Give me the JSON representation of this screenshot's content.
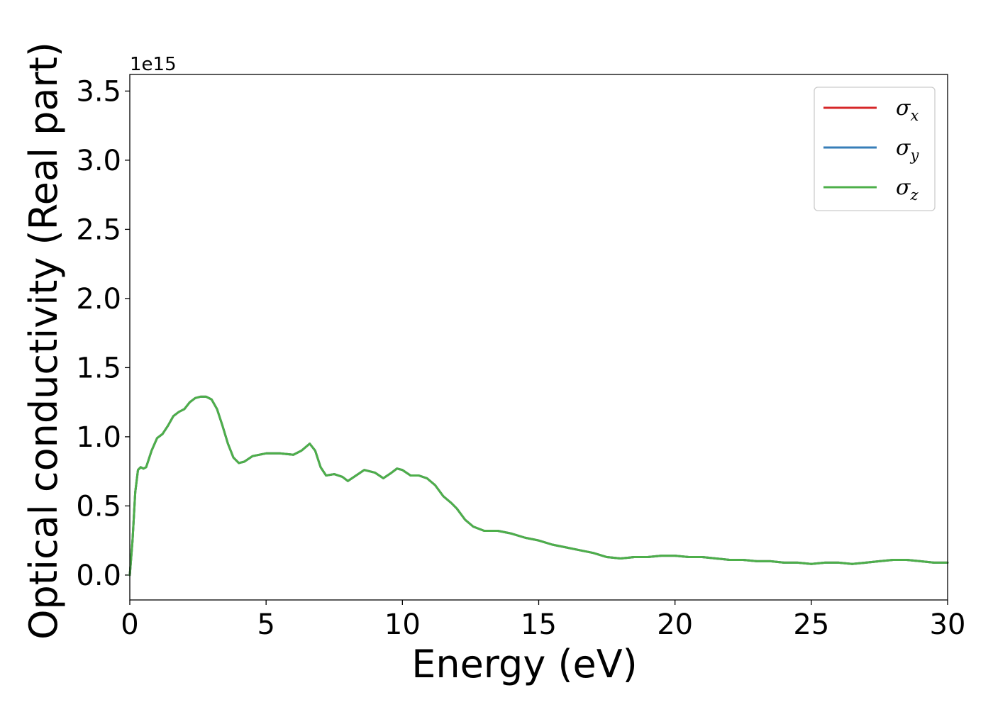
{
  "chart_data": {
    "type": "line",
    "title": "",
    "xlabel": "Energy (eV)",
    "ylabel": "Optical conductivity (Real part)",
    "y_offset_label": "1e15",
    "y_scale": 1000000000000000.0,
    "xlim": [
      0,
      30
    ],
    "ylim": [
      -0.18,
      3.62
    ],
    "grid": false,
    "legend_position": "top-right",
    "x_ticks": [
      0,
      5,
      10,
      15,
      20,
      25,
      30
    ],
    "x_tick_labels": [
      "0",
      "5",
      "10",
      "15",
      "20",
      "25",
      "30"
    ],
    "y_ticks": [
      0.0,
      0.5,
      1.0,
      1.5,
      2.0,
      2.5,
      3.0,
      3.5
    ],
    "y_tick_labels": [
      "0.0",
      "0.5",
      "1.0",
      "1.5",
      "2.0",
      "2.5",
      "3.0",
      "3.5"
    ],
    "series": [
      {
        "name": "σx",
        "symbol": "σ",
        "subscript": "x",
        "color": "#d62728",
        "x": [
          0,
          0.1,
          0.2,
          0.3,
          0.4,
          0.5,
          0.6,
          0.8,
          1.0,
          1.2,
          1.4,
          1.6,
          1.8,
          2.0,
          2.2,
          2.4,
          2.6,
          2.8,
          3.0,
          3.2,
          3.4,
          3.6,
          3.8,
          4.0,
          4.2,
          4.5,
          5.0,
          5.5,
          6.0,
          6.3,
          6.6,
          6.8,
          7.0,
          7.2,
          7.5,
          7.8,
          8.0,
          8.3,
          8.6,
          9.0,
          9.3,
          9.6,
          9.8,
          10.0,
          10.3,
          10.6,
          10.9,
          11.2,
          11.5,
          11.8,
          12.0,
          12.3,
          12.6,
          13.0,
          13.5,
          14.0,
          14.5,
          15.0,
          15.5,
          16.0,
          16.5,
          17.0,
          17.5,
          18.0,
          18.5,
          19.0,
          19.5,
          20.0,
          20.5,
          21.0,
          21.5,
          22.0,
          22.5,
          23.0,
          23.5,
          24.0,
          24.5,
          25.0,
          25.5,
          26.0,
          26.5,
          27.0,
          27.5,
          28.0,
          28.5,
          29.0,
          29.5,
          30.0
        ],
        "y": [
          0.0,
          0.25,
          0.6,
          0.76,
          0.78,
          0.77,
          0.78,
          0.9,
          0.99,
          1.02,
          1.08,
          1.15,
          1.18,
          1.2,
          1.25,
          1.28,
          1.29,
          1.29,
          1.27,
          1.2,
          1.08,
          0.95,
          0.85,
          0.81,
          0.82,
          0.86,
          0.88,
          0.88,
          0.87,
          0.9,
          0.95,
          0.9,
          0.78,
          0.72,
          0.73,
          0.71,
          0.68,
          0.72,
          0.76,
          0.74,
          0.7,
          0.74,
          0.77,
          0.76,
          0.72,
          0.72,
          0.7,
          0.65,
          0.57,
          0.52,
          0.48,
          0.4,
          0.35,
          0.32,
          0.32,
          0.3,
          0.27,
          0.25,
          0.22,
          0.2,
          0.18,
          0.16,
          0.13,
          0.12,
          0.13,
          0.13,
          0.14,
          0.14,
          0.13,
          0.13,
          0.12,
          0.11,
          0.11,
          0.1,
          0.1,
          0.09,
          0.09,
          0.08,
          0.09,
          0.09,
          0.08,
          0.09,
          0.1,
          0.11,
          0.11,
          0.1,
          0.09,
          0.09
        ]
      },
      {
        "name": "σy",
        "symbol": "σ",
        "subscript": "y",
        "color": "#377eb8",
        "x": [
          0,
          0.1,
          0.2,
          0.3,
          0.4,
          0.5,
          0.6,
          0.8,
          1.0,
          1.2,
          1.4,
          1.6,
          1.8,
          2.0,
          2.2,
          2.4,
          2.6,
          2.8,
          3.0,
          3.2,
          3.4,
          3.6,
          3.8,
          4.0,
          4.2,
          4.5,
          5.0,
          5.5,
          6.0,
          6.3,
          6.6,
          6.8,
          7.0,
          7.2,
          7.5,
          7.8,
          8.0,
          8.3,
          8.6,
          9.0,
          9.3,
          9.6,
          9.8,
          10.0,
          10.3,
          10.6,
          10.9,
          11.2,
          11.5,
          11.8,
          12.0,
          12.3,
          12.6,
          13.0,
          13.5,
          14.0,
          14.5,
          15.0,
          15.5,
          16.0,
          16.5,
          17.0,
          17.5,
          18.0,
          18.5,
          19.0,
          19.5,
          20.0,
          20.5,
          21.0,
          21.5,
          22.0,
          22.5,
          23.0,
          23.5,
          24.0,
          24.5,
          25.0,
          25.5,
          26.0,
          26.5,
          27.0,
          27.5,
          28.0,
          28.5,
          29.0,
          29.5,
          30.0
        ],
        "y": [
          0.0,
          0.25,
          0.6,
          0.76,
          0.78,
          0.77,
          0.78,
          0.9,
          0.99,
          1.02,
          1.08,
          1.15,
          1.18,
          1.2,
          1.25,
          1.28,
          1.29,
          1.29,
          1.27,
          1.2,
          1.08,
          0.95,
          0.85,
          0.81,
          0.82,
          0.86,
          0.88,
          0.88,
          0.87,
          0.9,
          0.95,
          0.9,
          0.78,
          0.72,
          0.73,
          0.71,
          0.68,
          0.72,
          0.76,
          0.74,
          0.7,
          0.74,
          0.77,
          0.76,
          0.72,
          0.72,
          0.7,
          0.65,
          0.57,
          0.52,
          0.48,
          0.4,
          0.35,
          0.32,
          0.32,
          0.3,
          0.27,
          0.25,
          0.22,
          0.2,
          0.18,
          0.16,
          0.13,
          0.12,
          0.13,
          0.13,
          0.14,
          0.14,
          0.13,
          0.13,
          0.12,
          0.11,
          0.11,
          0.1,
          0.1,
          0.09,
          0.09,
          0.08,
          0.09,
          0.09,
          0.08,
          0.09,
          0.1,
          0.11,
          0.11,
          0.1,
          0.09,
          0.09
        ]
      },
      {
        "name": "σz",
        "symbol": "σ",
        "subscript": "z",
        "color": "#4daf4a",
        "x": [
          0,
          0.1,
          0.2,
          0.3,
          0.4,
          0.5,
          0.6,
          0.8,
          1.0,
          1.2,
          1.4,
          1.6,
          1.8,
          2.0,
          2.2,
          2.4,
          2.6,
          2.8,
          3.0,
          3.2,
          3.4,
          3.6,
          3.8,
          4.0,
          4.2,
          4.5,
          5.0,
          5.5,
          6.0,
          6.3,
          6.6,
          6.8,
          7.0,
          7.2,
          7.5,
          7.8,
          8.0,
          8.3,
          8.6,
          9.0,
          9.3,
          9.6,
          9.8,
          10.0,
          10.3,
          10.6,
          10.9,
          11.2,
          11.5,
          11.8,
          12.0,
          12.3,
          12.6,
          13.0,
          13.5,
          14.0,
          14.5,
          15.0,
          15.5,
          16.0,
          16.5,
          17.0,
          17.5,
          18.0,
          18.5,
          19.0,
          19.5,
          20.0,
          20.5,
          21.0,
          21.5,
          22.0,
          22.5,
          23.0,
          23.5,
          24.0,
          24.5,
          25.0,
          25.5,
          26.0,
          26.5,
          27.0,
          27.5,
          28.0,
          28.5,
          29.0,
          29.5,
          30.0
        ],
        "y": [
          0.0,
          0.25,
          0.6,
          0.76,
          0.78,
          0.77,
          0.78,
          0.9,
          0.99,
          1.02,
          1.08,
          1.15,
          1.18,
          1.2,
          1.25,
          1.28,
          1.29,
          1.29,
          1.27,
          1.2,
          1.08,
          0.95,
          0.85,
          0.81,
          0.82,
          0.86,
          0.88,
          0.88,
          0.87,
          0.9,
          0.95,
          0.9,
          0.78,
          0.72,
          0.73,
          0.71,
          0.68,
          0.72,
          0.76,
          0.74,
          0.7,
          0.74,
          0.77,
          0.76,
          0.72,
          0.72,
          0.7,
          0.65,
          0.57,
          0.52,
          0.48,
          0.4,
          0.35,
          0.32,
          0.32,
          0.3,
          0.27,
          0.25,
          0.22,
          0.2,
          0.18,
          0.16,
          0.13,
          0.12,
          0.13,
          0.13,
          0.14,
          0.14,
          0.13,
          0.13,
          0.12,
          0.11,
          0.11,
          0.1,
          0.1,
          0.09,
          0.09,
          0.08,
          0.09,
          0.09,
          0.08,
          0.09,
          0.1,
          0.11,
          0.11,
          0.1,
          0.09,
          0.09
        ]
      }
    ]
  }
}
